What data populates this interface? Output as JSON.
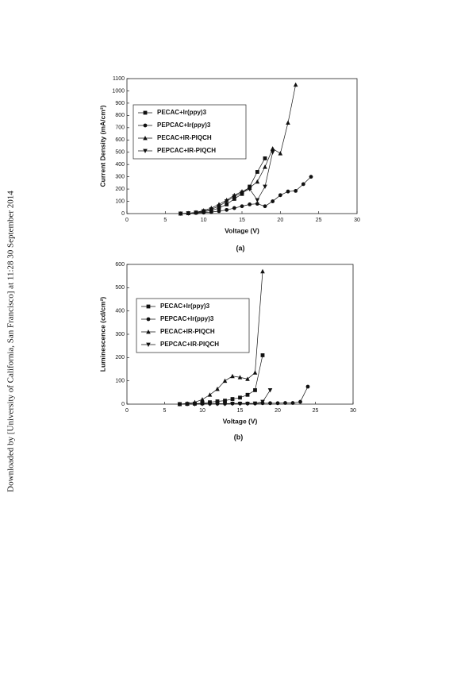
{
  "sidebar": "Downloaded by [University of California, San Francisco] at 11:28 30 September 2014",
  "chart_data": [
    {
      "type": "line",
      "caption": "(a)",
      "x_label": "Voltage (V)",
      "y_label": "Current Density (mA/cm²)",
      "legend": "upper left",
      "x": [
        7,
        8,
        9,
        10,
        11,
        12,
        13,
        14,
        15,
        16,
        17,
        18,
        19,
        20,
        21,
        22,
        23,
        24
      ],
      "xlim": [
        0,
        30
      ],
      "xticks": [
        0,
        5,
        10,
        15,
        20,
        25,
        30
      ],
      "ylim": [
        0,
        1100
      ],
      "yticks": [
        0,
        100,
        200,
        300,
        400,
        500,
        600,
        700,
        800,
        900,
        1000,
        1100
      ],
      "series": [
        {
          "name": "PECAC+Ir(ppy)3",
          "color": "#111111",
          "marker": "square",
          "values": [
            0,
            3,
            8,
            15,
            25,
            45,
            75,
            120,
            160,
            220,
            340,
            450,
            null,
            null,
            null,
            null,
            null,
            null
          ]
        },
        {
          "name": "PEPCAC+Ir(ppy)3",
          "color": "#111111",
          "marker": "circle",
          "values": [
            0,
            2,
            5,
            8,
            12,
            20,
            30,
            45,
            60,
            75,
            80,
            60,
            100,
            150,
            180,
            185,
            240,
            300
          ]
        },
        {
          "name": "PECAC+IR-PIQCH",
          "color": "#111111",
          "marker": "triangle-up",
          "values": [
            0,
            3,
            10,
            25,
            45,
            75,
            110,
            150,
            180,
            210,
            260,
            380,
            530,
            490,
            740,
            1050,
            null,
            null
          ]
        },
        {
          "name": "PEPCAC+IR-PIQCH",
          "color": "#111111",
          "marker": "triangle-down",
          "values": [
            0,
            2,
            8,
            20,
            35,
            60,
            100,
            140,
            170,
            200,
            110,
            220,
            500,
            null,
            null,
            null,
            null,
            null
          ]
        }
      ]
    },
    {
      "type": "line",
      "caption": "(b)",
      "x_label": "Voltage (V)",
      "y_label": "Luminescence (cd/cm²)",
      "legend": "upper left",
      "x": [
        7,
        8,
        9,
        10,
        11,
        12,
        13,
        14,
        15,
        16,
        17,
        18,
        19,
        20,
        21,
        22,
        23,
        24
      ],
      "xlim": [
        0,
        30
      ],
      "xticks": [
        0,
        5,
        10,
        15,
        20,
        25,
        30
      ],
      "ylim": [
        0,
        600
      ],
      "yticks": [
        0,
        100,
        200,
        300,
        400,
        500,
        600
      ],
      "series": [
        {
          "name": "PECAC+Ir(ppy)3",
          "color": "#111111",
          "marker": "square",
          "values": [
            0,
            1,
            2,
            4,
            8,
            12,
            15,
            22,
            28,
            40,
            60,
            210,
            null,
            null,
            null,
            null,
            null,
            null
          ]
        },
        {
          "name": "PEPCAC+Ir(ppy)3",
          "color": "#111111",
          "marker": "circle",
          "values": [
            0,
            1,
            1,
            2,
            2,
            2,
            2,
            3,
            3,
            3,
            3,
            4,
            4,
            4,
            5,
            5,
            10,
            75
          ]
        },
        {
          "name": "PECAC+IR-PIQCH",
          "color": "#111111",
          "marker": "triangle-up",
          "values": [
            0,
            3,
            8,
            20,
            40,
            65,
            100,
            120,
            115,
            108,
            135,
            570,
            null,
            null,
            null,
            null,
            null,
            null
          ]
        },
        {
          "name": "PEPCAC+IR-PIQCH",
          "color": "#111111",
          "marker": "triangle-down",
          "values": [
            0,
            0,
            0,
            1,
            1,
            1,
            1,
            2,
            2,
            2,
            3,
            10,
            60,
            null,
            null,
            null,
            null,
            null
          ]
        }
      ]
    }
  ]
}
